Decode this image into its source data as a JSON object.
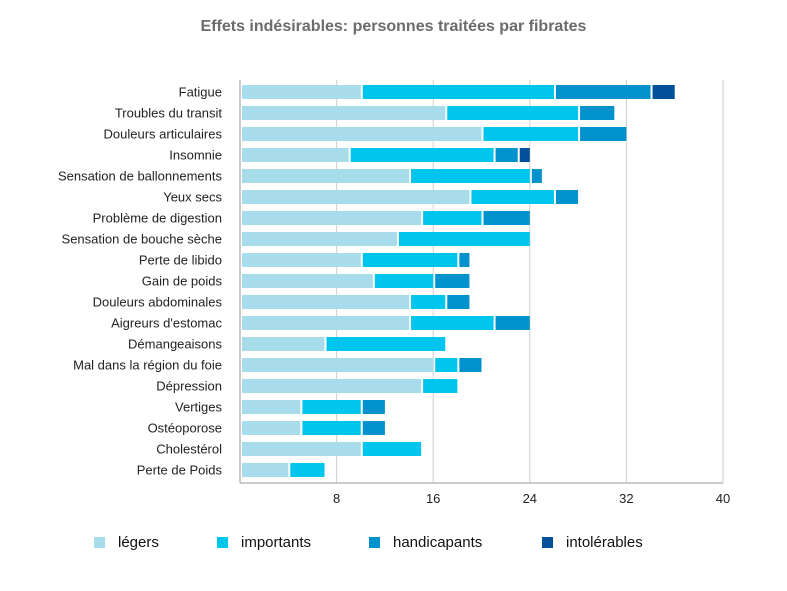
{
  "chart_data": {
    "type": "bar",
    "orientation": "horizontal",
    "stacked": true,
    "title": "Effets indésirables: personnes traitées par fibrates",
    "xlabel": "",
    "ylabel": "",
    "xlim": [
      0,
      40
    ],
    "xticks": [
      8,
      16,
      24,
      32,
      40
    ],
    "grid": true,
    "legend_position": "bottom",
    "categories": [
      "Fatigue",
      "Troubles du transit",
      "Douleurs articulaires",
      "Insomnie",
      "Sensation de ballonnements",
      "Yeux secs",
      "Problème de digestion",
      "Sensation de bouche sèche",
      "Perte de libido",
      "Gain de poids",
      "Douleurs abdominales",
      "Aigreurs d'estomac",
      "Démangeaisons",
      "Mal dans la région du foie",
      "Dépression",
      "Vertiges",
      "Ostéoporose",
      "Cholestérol",
      "Perte de Poids"
    ],
    "series": [
      {
        "name": "légers",
        "color": "#a8dcea",
        "values": [
          10,
          17,
          20,
          9,
          14,
          19,
          15,
          13,
          10,
          11,
          14,
          14,
          7,
          16,
          15,
          5,
          5,
          10,
          4
        ]
      },
      {
        "name": "importants",
        "color": "#00c5ec",
        "values": [
          16,
          11,
          8,
          12,
          10,
          7,
          5,
          11,
          8,
          5,
          3,
          7,
          10,
          2,
          3,
          5,
          5,
          5,
          3
        ]
      },
      {
        "name": "handicapants",
        "color": "#0092cc",
        "values": [
          8,
          3,
          4,
          2,
          1,
          2,
          4,
          0,
          1,
          3,
          2,
          3,
          0,
          2,
          0,
          2,
          2,
          0,
          0
        ]
      },
      {
        "name": "intolérables",
        "color": "#00509a",
        "values": [
          2,
          0,
          0,
          1,
          0,
          0,
          0,
          0,
          0,
          0,
          0,
          0,
          0,
          0,
          0,
          0,
          0,
          0,
          0
        ]
      }
    ]
  }
}
